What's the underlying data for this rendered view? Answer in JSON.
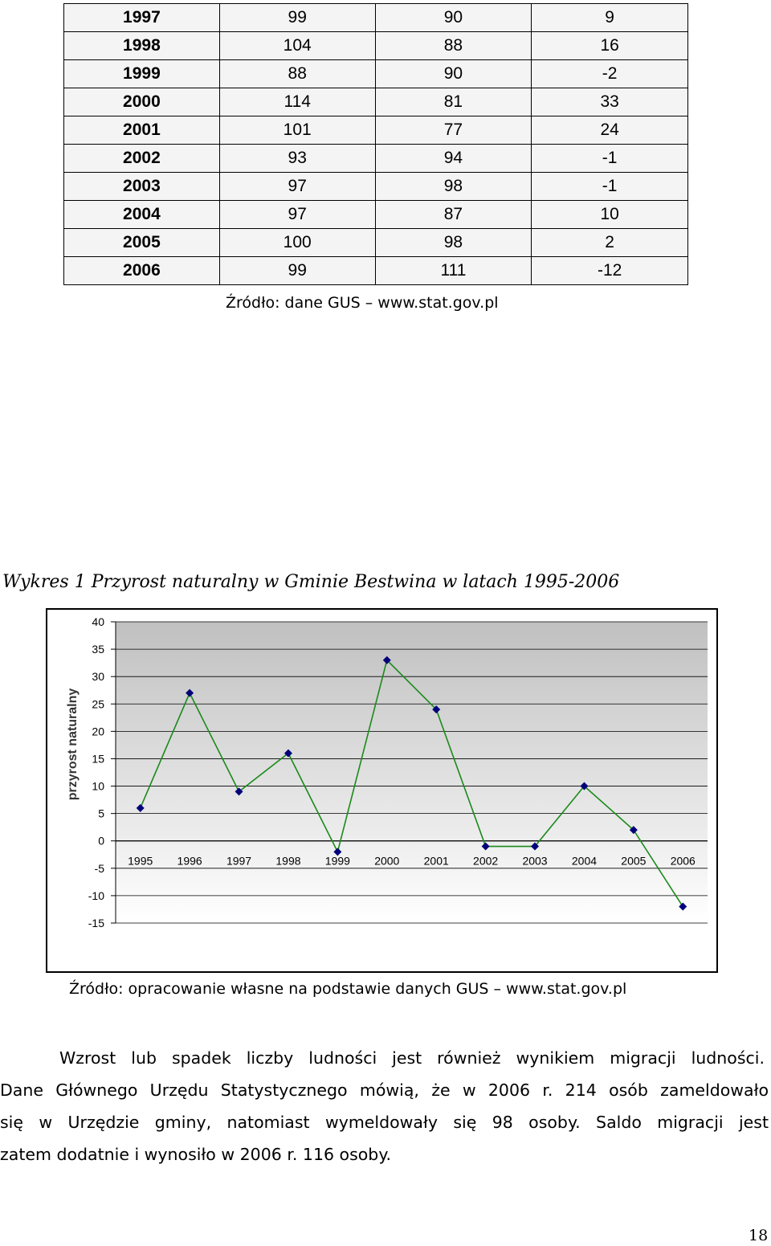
{
  "table": {
    "rows": [
      [
        "1997",
        "99",
        "90",
        "9"
      ],
      [
        "1998",
        "104",
        "88",
        "16"
      ],
      [
        "1999",
        "88",
        "90",
        "-2"
      ],
      [
        "2000",
        "114",
        "81",
        "33"
      ],
      [
        "2001",
        "101",
        "77",
        "24"
      ],
      [
        "2002",
        "93",
        "94",
        "-1"
      ],
      [
        "2003",
        "97",
        "98",
        "-1"
      ],
      [
        "2004",
        "97",
        "87",
        "10"
      ],
      [
        "2005",
        "100",
        "98",
        "2"
      ],
      [
        "2006",
        "99",
        "111",
        "-12"
      ]
    ],
    "source": "Źródło: dane GUS – www.stat.gov.pl"
  },
  "chart_data": {
    "type": "line",
    "title": "Wykres 1 Przyrost naturalny w Gminie Bestwina w latach 1995-2006",
    "ylabel": "przyrost naturalny",
    "xlabel": "",
    "x": [
      "1995",
      "1996",
      "1997",
      "1998",
      "1999",
      "2000",
      "2001",
      "2002",
      "2003",
      "2004",
      "2005",
      "2006"
    ],
    "values": [
      6,
      27,
      9,
      16,
      -2,
      33,
      24,
      -1,
      -1,
      10,
      2,
      -12
    ],
    "ylim": [
      -15,
      40
    ],
    "yticks": [
      "40",
      "35",
      "30",
      "25",
      "20",
      "15",
      "10",
      "5",
      "0",
      "-5",
      "-10",
      "-15"
    ],
    "grid": true,
    "line_color": "#1a8a1a",
    "marker_color": "#00007a",
    "plot_background": "#c0c0c0"
  },
  "chart_source": "Źródło: opracowanie własne na podstawie danych GUS – www.stat.gov.pl",
  "paragraph": [
    "Wzrost lub spadek liczby ludności jest również wynikiem migracji ludności.",
    "Dane Głównego Urzędu Statystycznego mówią, że w 2006 r. 214 osób zameldowało",
    "się w Urzędzie gminy, natomiast wymeldowały się 98 osoby. Saldo migracji jest",
    "zatem dodatnie i wynosiło w 2006 r. 116 osoby."
  ],
  "page_number": "18"
}
